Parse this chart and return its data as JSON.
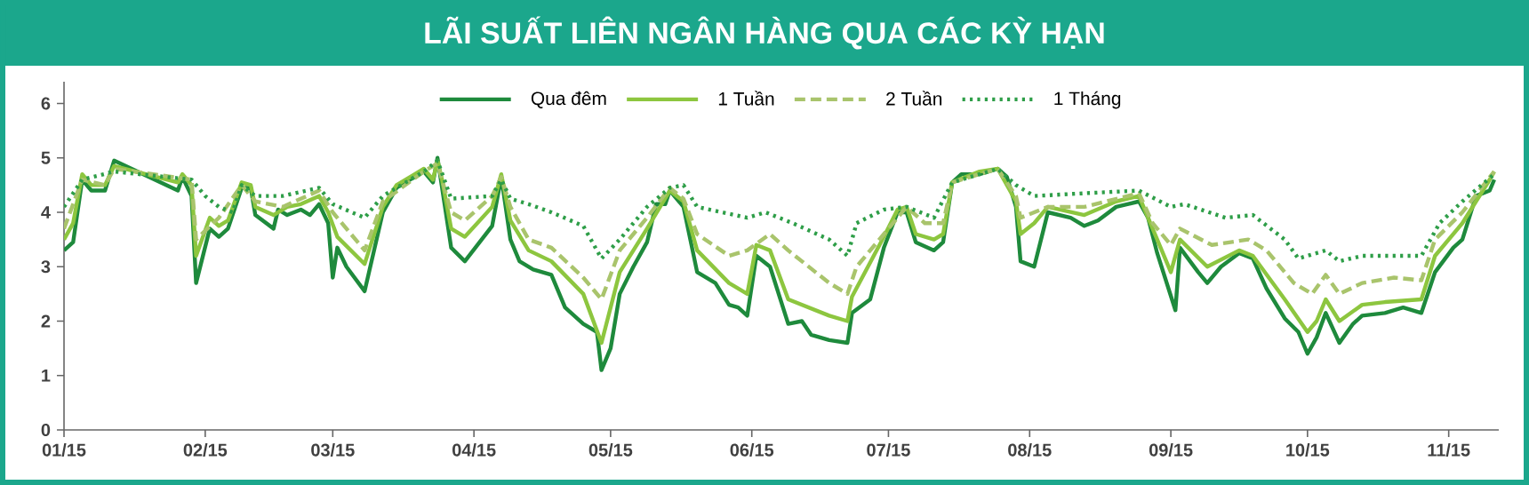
{
  "chart_data": {
    "type": "line",
    "title": "LÃI SUẤT LIÊN NGÂN HÀNG QUA CÁC KỲ HẠN",
    "xlim": [
      "2015-01-01",
      "2015-11-12"
    ],
    "ylim": [
      0,
      6.4
    ],
    "xticks": [
      {
        "value": "2015-01",
        "label": "01/15"
      },
      {
        "value": "2015-02",
        "label": "02/15"
      },
      {
        "value": "2015-03",
        "label": "03/15"
      },
      {
        "value": "2015-04",
        "label": "04/15"
      },
      {
        "value": "2015-05",
        "label": "05/15"
      },
      {
        "value": "2015-06",
        "label": "06/15"
      },
      {
        "value": "2015-07",
        "label": "07/15"
      },
      {
        "value": "2015-08",
        "label": "08/15"
      },
      {
        "value": "2015-09",
        "label": "09/15"
      },
      {
        "value": "2015-10",
        "label": "10/15"
      },
      {
        "value": "2015-11",
        "label": "11/15"
      }
    ],
    "yticks": [
      0,
      1,
      2,
      3,
      4,
      5,
      6
    ],
    "legend": "top",
    "marker": "none",
    "series": [
      {
        "name": "Qua đêm",
        "color": "#1e8a3c",
        "line_style": "solid",
        "x": [
          "2015-01-01",
          "2015-01-03",
          "2015-01-05",
          "2015-01-07",
          "2015-01-10",
          "2015-01-12",
          "2015-01-26",
          "2015-01-27",
          "2015-01-29",
          "2015-01-30",
          "2015-02-02",
          "2015-02-04",
          "2015-02-06",
          "2015-02-09",
          "2015-02-11",
          "2015-02-12",
          "2015-02-16",
          "2015-02-17",
          "2015-02-19",
          "2015-02-22",
          "2015-02-24",
          "2015-02-26",
          "2015-02-28",
          "2015-03-01",
          "2015-03-02",
          "2015-03-04",
          "2015-03-08",
          "2015-03-12",
          "2015-03-15",
          "2015-03-19",
          "2015-03-21",
          "2015-03-23",
          "2015-03-24",
          "2015-03-25",
          "2015-03-27",
          "2015-03-30",
          "2015-04-05",
          "2015-04-07",
          "2015-04-09",
          "2015-04-11",
          "2015-04-14",
          "2015-04-18",
          "2015-04-21",
          "2015-04-25",
          "2015-04-28",
          "2015-04-29",
          "2015-05-01",
          "2015-05-03",
          "2015-05-06",
          "2015-05-09",
          "2015-05-11",
          "2015-05-13",
          "2015-05-14",
          "2015-05-17",
          "2015-05-20",
          "2015-05-24",
          "2015-05-27",
          "2015-05-29",
          "2015-05-31",
          "2015-06-02",
          "2015-06-05",
          "2015-06-09",
          "2015-06-12",
          "2015-06-14",
          "2015-06-18",
          "2015-06-22",
          "2015-06-23",
          "2015-06-27",
          "2015-06-30",
          "2015-07-03",
          "2015-07-05",
          "2015-07-07",
          "2015-07-11",
          "2015-07-13",
          "2015-07-15",
          "2015-07-17",
          "2015-07-21",
          "2015-07-25",
          "2015-07-27",
          "2015-07-29",
          "2015-07-30",
          "2015-08-02",
          "2015-08-05",
          "2015-08-10",
          "2015-08-13",
          "2015-08-16",
          "2015-08-20",
          "2015-08-25",
          "2015-08-27",
          "2015-08-29",
          "2015-09-02",
          "2015-09-03",
          "2015-09-07",
          "2015-09-09",
          "2015-09-12",
          "2015-09-16",
          "2015-09-19",
          "2015-09-22",
          "2015-09-26",
          "2015-09-29",
          "2015-10-01",
          "2015-10-03",
          "2015-10-05",
          "2015-10-08",
          "2015-10-11",
          "2015-10-13",
          "2015-10-18",
          "2015-10-22",
          "2015-10-26",
          "2015-10-29",
          "2015-11-02",
          "2015-11-04",
          "2015-11-07",
          "2015-11-10",
          "2015-11-11"
        ],
        "values": [
          3.3,
          3.45,
          4.6,
          4.4,
          4.4,
          4.95,
          4.4,
          4.65,
          4.3,
          2.7,
          3.7,
          3.55,
          3.7,
          4.45,
          4.45,
          3.95,
          3.7,
          4.05,
          3.95,
          4.05,
          3.95,
          4.15,
          3.8,
          2.8,
          3.35,
          3.0,
          2.55,
          4.0,
          4.45,
          4.65,
          4.75,
          4.55,
          5.0,
          4.45,
          3.35,
          3.1,
          3.75,
          4.65,
          3.5,
          3.1,
          2.95,
          2.85,
          2.25,
          1.95,
          1.8,
          1.1,
          1.5,
          2.5,
          3.0,
          3.45,
          4.15,
          4.15,
          4.4,
          4.1,
          2.9,
          2.7,
          2.3,
          2.25,
          2.1,
          3.2,
          3.0,
          1.95,
          2.0,
          1.75,
          1.65,
          1.6,
          2.15,
          2.4,
          3.35,
          4.0,
          4.0,
          3.45,
          3.3,
          3.45,
          4.55,
          4.7,
          4.7,
          4.8,
          4.65,
          4.1,
          3.1,
          3.0,
          4.0,
          3.9,
          3.75,
          3.85,
          4.1,
          4.2,
          3.9,
          3.25,
          2.2,
          3.35,
          2.9,
          2.7,
          3.0,
          3.25,
          3.15,
          2.6,
          2.05,
          1.8,
          1.4,
          1.7,
          2.15,
          1.6,
          1.95,
          2.1,
          2.15,
          2.25,
          2.15,
          2.9,
          3.35,
          3.5,
          4.3,
          4.4,
          4.6
        ]
      },
      {
        "name": "1 Tuần",
        "color": "#8dc63f",
        "line_style": "solid",
        "x": [
          "2015-01-01",
          "2015-01-03",
          "2015-01-05",
          "2015-01-07",
          "2015-01-10",
          "2015-01-12",
          "2015-01-26",
          "2015-01-27",
          "2015-01-29",
          "2015-01-30",
          "2015-02-02",
          "2015-02-04",
          "2015-02-06",
          "2015-02-09",
          "2015-02-11",
          "2015-02-12",
          "2015-02-16",
          "2015-02-19",
          "2015-02-22",
          "2015-02-26",
          "2015-02-28",
          "2015-03-02",
          "2015-03-08",
          "2015-03-12",
          "2015-03-15",
          "2015-03-19",
          "2015-03-21",
          "2015-03-23",
          "2015-03-24",
          "2015-03-25",
          "2015-03-27",
          "2015-03-30",
          "2015-04-05",
          "2015-04-07",
          "2015-04-09",
          "2015-04-13",
          "2015-04-18",
          "2015-04-25",
          "2015-04-29",
          "2015-05-03",
          "2015-05-09",
          "2015-05-14",
          "2015-05-17",
          "2015-05-20",
          "2015-05-27",
          "2015-05-31",
          "2015-06-02",
          "2015-06-05",
          "2015-06-09",
          "2015-06-18",
          "2015-06-22",
          "2015-06-23",
          "2015-06-30",
          "2015-07-03",
          "2015-07-05",
          "2015-07-07",
          "2015-07-11",
          "2015-07-13",
          "2015-07-15",
          "2015-07-21",
          "2015-07-25",
          "2015-07-29",
          "2015-07-30",
          "2015-08-02",
          "2015-08-05",
          "2015-08-13",
          "2015-08-20",
          "2015-08-25",
          "2015-08-29",
          "2015-09-01",
          "2015-09-03",
          "2015-09-09",
          "2015-09-16",
          "2015-09-19",
          "2015-09-26",
          "2015-10-01",
          "2015-10-03",
          "2015-10-05",
          "2015-10-08",
          "2015-10-13",
          "2015-10-18",
          "2015-10-26",
          "2015-10-29",
          "2015-11-04",
          "2015-11-10",
          "2015-11-11"
        ],
        "values": [
          3.5,
          3.8,
          4.7,
          4.5,
          4.5,
          4.85,
          4.55,
          4.7,
          4.5,
          3.2,
          3.9,
          3.75,
          3.85,
          4.55,
          4.5,
          4.1,
          3.95,
          4.1,
          4.15,
          4.3,
          4.0,
          3.55,
          3.05,
          4.1,
          4.5,
          4.7,
          4.8,
          4.6,
          4.95,
          4.6,
          3.7,
          3.55,
          4.1,
          4.7,
          3.85,
          3.3,
          3.1,
          2.5,
          1.6,
          2.9,
          3.7,
          4.4,
          4.2,
          3.3,
          2.7,
          2.5,
          3.4,
          3.3,
          2.4,
          2.1,
          2.0,
          2.45,
          3.55,
          4.05,
          4.1,
          3.6,
          3.5,
          3.6,
          4.55,
          4.75,
          4.8,
          4.2,
          3.6,
          3.8,
          4.1,
          3.95,
          4.2,
          4.3,
          3.5,
          2.9,
          3.5,
          3.0,
          3.3,
          3.2,
          2.4,
          1.8,
          2.0,
          2.4,
          2.0,
          2.3,
          2.35,
          2.4,
          3.2,
          3.8,
          4.6,
          4.75
        ]
      },
      {
        "name": "2 Tuần",
        "color": "#a9c46c",
        "line_style": "dashed",
        "x": [
          "2015-01-01",
          "2015-01-05",
          "2015-01-10",
          "2015-01-12",
          "2015-01-29",
          "2015-01-30",
          "2015-02-04",
          "2015-02-09",
          "2015-02-12",
          "2015-02-18",
          "2015-02-26",
          "2015-03-01",
          "2015-03-08",
          "2015-03-12",
          "2015-03-21",
          "2015-03-24",
          "2015-03-27",
          "2015-03-30",
          "2015-04-05",
          "2015-04-07",
          "2015-04-09",
          "2015-04-13",
          "2015-04-18",
          "2015-04-25",
          "2015-04-29",
          "2015-05-03",
          "2015-05-09",
          "2015-05-14",
          "2015-05-17",
          "2015-05-20",
          "2015-05-27",
          "2015-05-31",
          "2015-06-05",
          "2015-06-09",
          "2015-06-18",
          "2015-06-22",
          "2015-06-24",
          "2015-06-30",
          "2015-07-05",
          "2015-07-09",
          "2015-07-13",
          "2015-07-15",
          "2015-07-25",
          "2015-07-29",
          "2015-07-30",
          "2015-08-05",
          "2015-08-13",
          "2015-08-25",
          "2015-08-28",
          "2015-09-01",
          "2015-09-03",
          "2015-09-10",
          "2015-09-18",
          "2015-09-22",
          "2015-09-28",
          "2015-10-02",
          "2015-10-05",
          "2015-10-08",
          "2015-10-13",
          "2015-10-20",
          "2015-10-26",
          "2015-10-29",
          "2015-11-04",
          "2015-11-11"
        ],
        "values": [
          3.7,
          4.6,
          4.5,
          4.8,
          4.6,
          3.5,
          3.9,
          4.5,
          4.2,
          4.1,
          4.4,
          4.0,
          3.3,
          4.2,
          4.75,
          4.9,
          4.0,
          3.85,
          4.3,
          4.65,
          4.1,
          3.5,
          3.35,
          2.8,
          2.4,
          3.3,
          3.9,
          4.45,
          4.25,
          3.6,
          3.2,
          3.3,
          3.6,
          3.3,
          2.7,
          2.5,
          3.0,
          3.6,
          4.1,
          3.8,
          3.8,
          4.55,
          4.8,
          4.3,
          3.9,
          4.1,
          4.1,
          4.35,
          3.8,
          3.4,
          3.7,
          3.4,
          3.5,
          3.3,
          2.7,
          2.5,
          2.85,
          2.5,
          2.7,
          2.8,
          2.75,
          3.5,
          4.0,
          4.75
        ]
      },
      {
        "name": "1 Tháng",
        "color": "#2e9e48",
        "line_style": "dotted",
        "x": [
          "2015-01-01",
          "2015-01-05",
          "2015-01-12",
          "2015-01-29",
          "2015-02-01",
          "2015-02-04",
          "2015-02-07",
          "2015-02-09",
          "2015-02-12",
          "2015-02-18",
          "2015-02-26",
          "2015-03-01",
          "2015-03-08",
          "2015-03-12",
          "2015-03-21",
          "2015-03-24",
          "2015-03-27",
          "2015-04-05",
          "2015-04-07",
          "2015-04-09",
          "2015-04-13",
          "2015-04-18",
          "2015-04-25",
          "2015-04-29",
          "2015-05-03",
          "2015-05-09",
          "2015-05-14",
          "2015-05-17",
          "2015-05-20",
          "2015-05-31",
          "2015-06-04",
          "2015-06-10",
          "2015-06-18",
          "2015-06-22",
          "2015-06-24",
          "2015-06-30",
          "2015-07-05",
          "2015-07-11",
          "2015-07-15",
          "2015-07-25",
          "2015-07-29",
          "2015-08-02",
          "2015-08-13",
          "2015-08-25",
          "2015-09-01",
          "2015-09-04",
          "2015-09-13",
          "2015-09-19",
          "2015-09-26",
          "2015-09-29",
          "2015-10-05",
          "2015-10-08",
          "2015-10-13",
          "2015-10-20",
          "2015-10-26",
          "2015-10-30",
          "2015-11-04",
          "2015-11-11"
        ],
        "values": [
          4.1,
          4.6,
          4.75,
          4.6,
          4.3,
          4.1,
          4.0,
          4.5,
          4.3,
          4.3,
          4.45,
          4.15,
          3.9,
          4.3,
          4.75,
          4.95,
          4.25,
          4.3,
          4.6,
          4.25,
          4.15,
          4.0,
          3.75,
          3.15,
          3.5,
          4.1,
          4.45,
          4.5,
          4.1,
          3.9,
          4.0,
          3.8,
          3.5,
          3.2,
          3.8,
          4.05,
          4.1,
          3.9,
          4.55,
          4.8,
          4.5,
          4.3,
          4.35,
          4.4,
          4.1,
          4.15,
          3.9,
          3.95,
          3.5,
          3.15,
          3.3,
          3.1,
          3.2,
          3.2,
          3.2,
          3.8,
          4.2,
          4.7
        ]
      }
    ]
  }
}
